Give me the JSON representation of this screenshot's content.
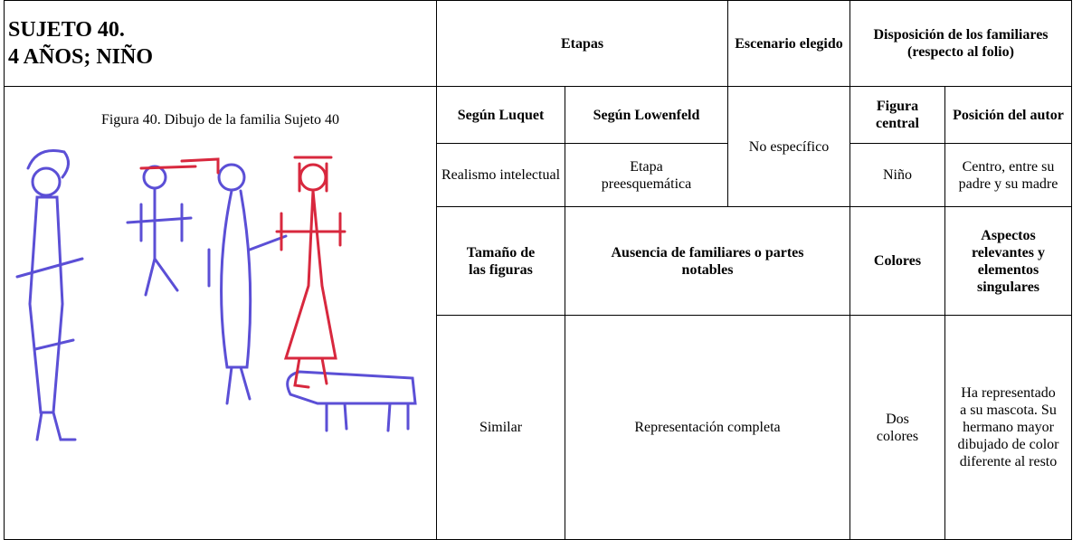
{
  "header": {
    "title_lines": [
      "SUJETO 40.",
      "4 AÑOS; NIÑO"
    ],
    "etapas": "Etapas",
    "escenario": "Escenario elegido",
    "disposicion": "Disposición de los familiares (respecto al folio)"
  },
  "figure_caption": "Figura 40. Dibujo de la familia Sujeto 40",
  "subheaders1": [
    "Según Luquet",
    "Según Lowenfeld",
    "Figura central",
    "Posición del autor"
  ],
  "row1": {
    "luquet": "Realismo intelectual",
    "lowenfeld": "Etapa preesquemática",
    "escenario": "No específico",
    "figura_central": "Niño",
    "posicion": "Centro, entre su padre y su madre"
  },
  "subheaders2": [
    "Tamaño de las figuras",
    "Ausencia de familiares o partes notables",
    "Colores",
    "Aspectos relevantes y elementos singulares"
  ],
  "row2": {
    "tamano": "Similar",
    "ausencia": "Representación completa",
    "colores": "Dos colores",
    "aspectos": "Ha representado a su mascota. Su hermano mayor dibujado de color diferente al resto"
  }
}
